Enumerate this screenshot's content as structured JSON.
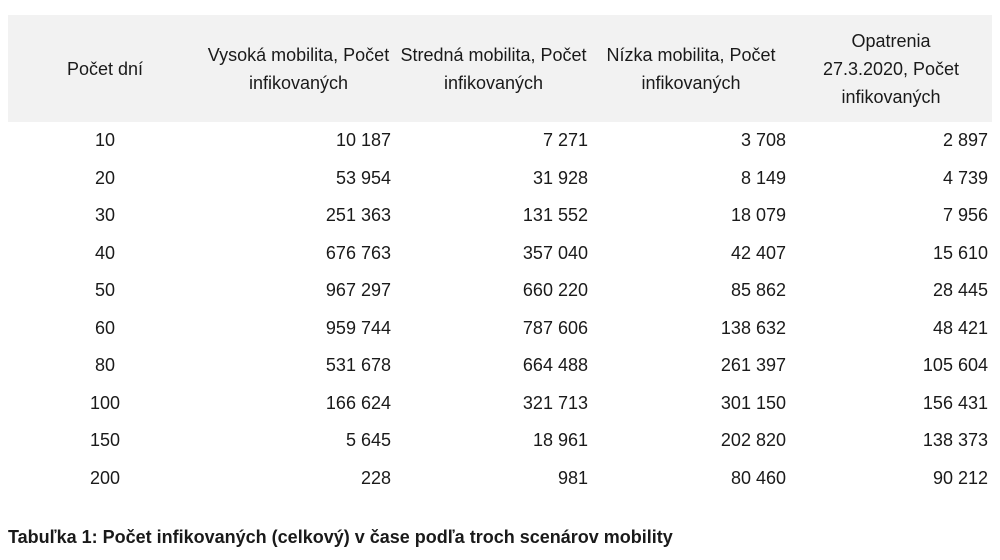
{
  "table": {
    "headers": [
      "Počet dní",
      "Vysoká mobilita, Počet infikovaných",
      "Stredná mobilita, Počet infikovaných",
      "Nízka mobilita, Počet infikovaných",
      "Opatrenia 27.3.2020, Počet infikovaných"
    ],
    "rows": [
      [
        "10",
        "10 187",
        "7 271",
        "3 708",
        "2 897"
      ],
      [
        "20",
        "53 954",
        "31 928",
        "8 149",
        "4 739"
      ],
      [
        "30",
        "251 363",
        "131 552",
        "18 079",
        "7 956"
      ],
      [
        "40",
        "676 763",
        "357 040",
        "42 407",
        "15 610"
      ],
      [
        "50",
        "967 297",
        "660 220",
        "85 862",
        "28 445"
      ],
      [
        "60",
        "959 744",
        "787 606",
        "138 632",
        "48 421"
      ],
      [
        "80",
        "531 678",
        "664 488",
        "261 397",
        "105 604"
      ],
      [
        "100",
        "166 624",
        "321 713",
        "301 150",
        "156 431"
      ],
      [
        "150",
        "5 645",
        "18 961",
        "202 820",
        "138 373"
      ],
      [
        "200",
        "228",
        "981",
        "80 460",
        "90 212"
      ]
    ],
    "header_bg": "#f2f2f2"
  },
  "caption": "Tabuľka 1: Počet infikovaných (celkový) v čase podľa troch scenárov mobility"
}
